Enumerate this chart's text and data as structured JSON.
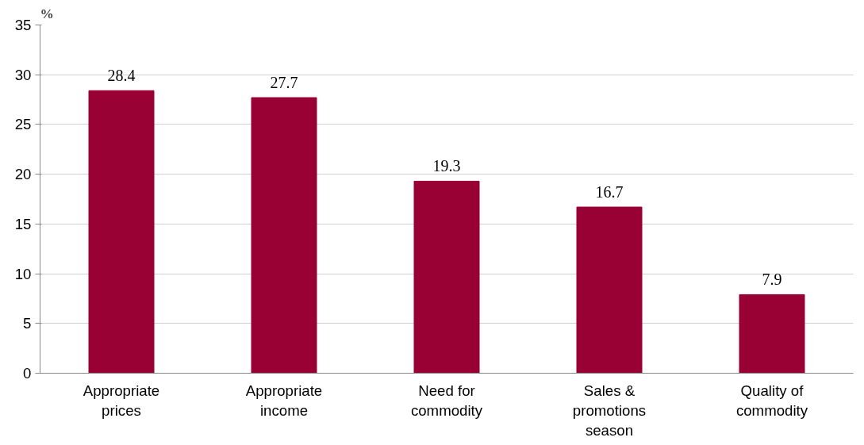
{
  "chart_data": {
    "type": "bar",
    "ylabel": "%",
    "categories": [
      "Appropriate prices",
      "Appropriate income",
      "Need for commodity",
      "Sales & promotions season",
      "Quality of commodity"
    ],
    "values": [
      28.4,
      27.7,
      19.3,
      16.7,
      7.9
    ],
    "color": "#990033",
    "ylim": [
      0,
      35
    ],
    "yticks": [
      0,
      5,
      10,
      15,
      20,
      25,
      30,
      35
    ],
    "grid": "y",
    "data_labels": true
  }
}
